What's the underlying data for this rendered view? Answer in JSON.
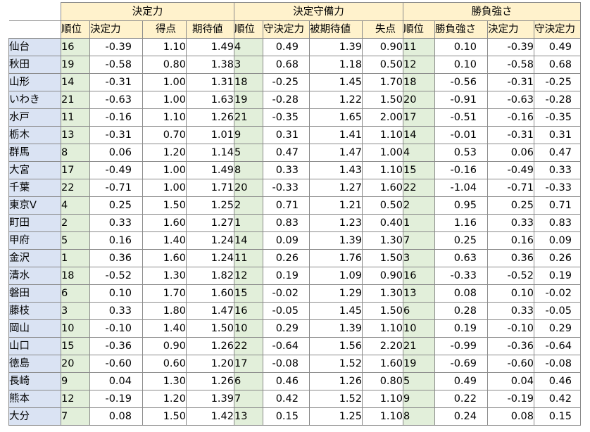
{
  "groups": [
    {
      "label": "決定力",
      "headers": [
        "順位",
        "決定力",
        "得点",
        "期待値"
      ]
    },
    {
      "label": "決定守備力",
      "headers": [
        "順位",
        "守決定力",
        "被期待値",
        "失点"
      ]
    },
    {
      "label": "勝負強さ",
      "headers": [
        "順位",
        "勝負強さ",
        "決定力",
        "守決定力"
      ]
    }
  ],
  "rows": [
    {
      "team": "仙台",
      "cells": [
        "16",
        "-0.39",
        "1.10",
        "1.49",
        "4",
        "0.49",
        "1.39",
        "0.90",
        "11",
        "0.10",
        "-0.39",
        "0.49"
      ]
    },
    {
      "team": "秋田",
      "cells": [
        "19",
        "-0.58",
        "0.80",
        "1.38",
        "3",
        "0.68",
        "1.18",
        "0.50",
        "12",
        "0.10",
        "-0.58",
        "0.68"
      ]
    },
    {
      "team": "山形",
      "cells": [
        "14",
        "-0.31",
        "1.00",
        "1.31",
        "18",
        "-0.25",
        "1.45",
        "1.70",
        "18",
        "-0.56",
        "-0.31",
        "-0.25"
      ]
    },
    {
      "team": "いわき",
      "cells": [
        "21",
        "-0.63",
        "1.00",
        "1.63",
        "19",
        "-0.28",
        "1.22",
        "1.50",
        "20",
        "-0.91",
        "-0.63",
        "-0.28"
      ]
    },
    {
      "team": "水戸",
      "cells": [
        "11",
        "-0.16",
        "1.10",
        "1.26",
        "21",
        "-0.35",
        "1.65",
        "2.00",
        "17",
        "-0.51",
        "-0.16",
        "-0.35"
      ]
    },
    {
      "team": "栃木",
      "cells": [
        "13",
        "-0.31",
        "0.70",
        "1.01",
        "9",
        "0.31",
        "1.41",
        "1.10",
        "14",
        "-0.01",
        "-0.31",
        "0.31"
      ]
    },
    {
      "team": "群馬",
      "cells": [
        "8",
        "0.06",
        "1.20",
        "1.14",
        "5",
        "0.47",
        "1.47",
        "1.00",
        "4",
        "0.53",
        "0.06",
        "0.47"
      ]
    },
    {
      "team": "大宮",
      "cells": [
        "17",
        "-0.49",
        "1.00",
        "1.49",
        "8",
        "0.33",
        "1.43",
        "1.10",
        "15",
        "-0.16",
        "-0.49",
        "0.33"
      ]
    },
    {
      "team": "千葉",
      "cells": [
        "22",
        "-0.71",
        "1.00",
        "1.71",
        "20",
        "-0.33",
        "1.27",
        "1.60",
        "22",
        "-1.04",
        "-0.71",
        "-0.33"
      ]
    },
    {
      "team": "東京V",
      "cells": [
        "4",
        "0.25",
        "1.50",
        "1.25",
        "2",
        "0.71",
        "1.21",
        "0.50",
        "2",
        "0.95",
        "0.25",
        "0.71"
      ]
    },
    {
      "team": "町田",
      "cells": [
        "2",
        "0.33",
        "1.60",
        "1.27",
        "1",
        "0.83",
        "1.23",
        "0.40",
        "1",
        "1.16",
        "0.33",
        "0.83"
      ]
    },
    {
      "team": "甲府",
      "cells": [
        "5",
        "0.16",
        "1.40",
        "1.24",
        "14",
        "0.09",
        "1.39",
        "1.30",
        "7",
        "0.25",
        "0.16",
        "0.09"
      ]
    },
    {
      "team": "金沢",
      "cells": [
        "1",
        "0.36",
        "1.60",
        "1.24",
        "11",
        "0.26",
        "1.76",
        "1.50",
        "3",
        "0.63",
        "0.36",
        "0.26"
      ]
    },
    {
      "team": "清水",
      "cells": [
        "18",
        "-0.52",
        "1.30",
        "1.82",
        "12",
        "0.19",
        "1.09",
        "0.90",
        "16",
        "-0.33",
        "-0.52",
        "0.19"
      ]
    },
    {
      "team": "磐田",
      "cells": [
        "6",
        "0.10",
        "1.70",
        "1.60",
        "15",
        "-0.02",
        "1.29",
        "1.30",
        "13",
        "0.08",
        "0.10",
        "-0.02"
      ]
    },
    {
      "team": "藤枝",
      "cells": [
        "3",
        "0.33",
        "1.80",
        "1.47",
        "16",
        "-0.05",
        "1.45",
        "1.50",
        "6",
        "0.28",
        "0.33",
        "-0.05"
      ]
    },
    {
      "team": "岡山",
      "cells": [
        "10",
        "-0.10",
        "1.40",
        "1.50",
        "10",
        "0.29",
        "1.39",
        "1.10",
        "10",
        "0.19",
        "-0.10",
        "0.29"
      ]
    },
    {
      "team": "山口",
      "cells": [
        "15",
        "-0.36",
        "0.90",
        "1.26",
        "22",
        "-0.64",
        "1.56",
        "2.20",
        "21",
        "-0.99",
        "-0.36",
        "-0.64"
      ]
    },
    {
      "team": "徳島",
      "cells": [
        "20",
        "-0.60",
        "0.60",
        "1.20",
        "17",
        "-0.08",
        "1.52",
        "1.60",
        "19",
        "-0.69",
        "-0.60",
        "-0.08"
      ]
    },
    {
      "team": "長崎",
      "cells": [
        "9",
        "0.04",
        "1.30",
        "1.26",
        "6",
        "0.46",
        "1.26",
        "0.80",
        "5",
        "0.49",
        "0.04",
        "0.46"
      ]
    },
    {
      "team": "熊本",
      "cells": [
        "12",
        "-0.19",
        "1.20",
        "1.39",
        "7",
        "0.42",
        "1.52",
        "1.10",
        "9",
        "0.22",
        "-0.19",
        "0.42"
      ]
    },
    {
      "team": "大分",
      "cells": [
        "7",
        "0.08",
        "1.50",
        "1.42",
        "13",
        "0.15",
        "1.25",
        "1.10",
        "8",
        "0.24",
        "0.08",
        "0.15"
      ]
    }
  ]
}
